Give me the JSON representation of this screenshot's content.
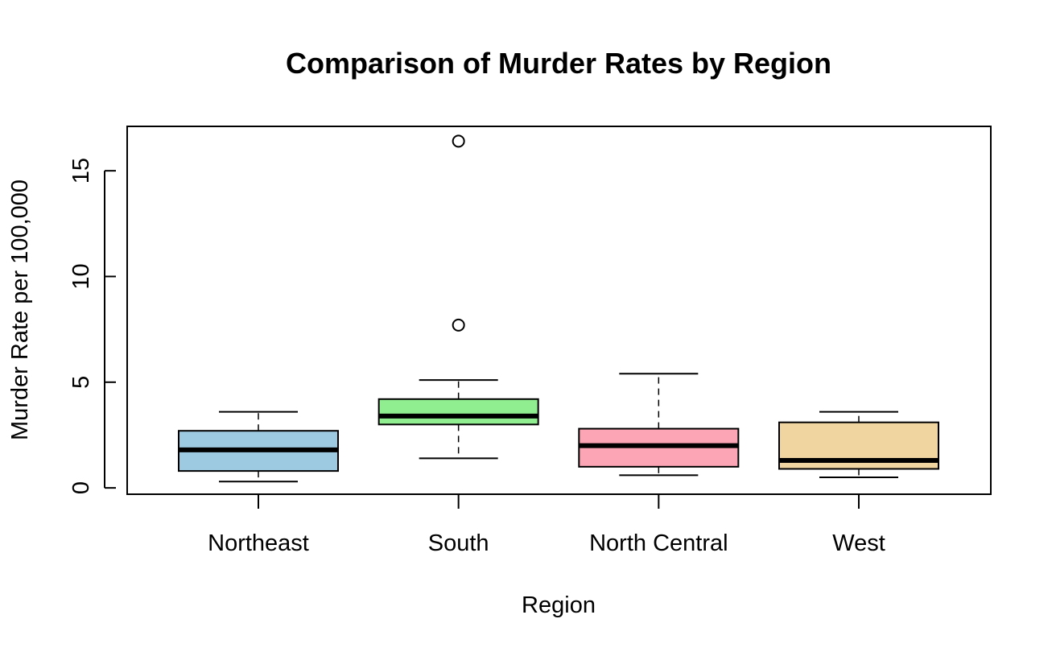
{
  "chart_data": {
    "type": "boxplot",
    "title": "Comparison of Murder Rates by Region",
    "xlabel": "Region",
    "ylabel": "Murder Rate per 100,000",
    "ylim": [
      -0.3,
      17.1
    ],
    "yticks": [
      0,
      5,
      10,
      15
    ],
    "categories": [
      "Northeast",
      "South",
      "North Central",
      "West"
    ],
    "boxes": [
      {
        "category": "Northeast",
        "min": 0.3,
        "q1": 0.8,
        "median": 1.8,
        "q3": 2.7,
        "max": 3.6,
        "outliers": [],
        "color": "#9ECAE1"
      },
      {
        "category": "South",
        "min": 1.4,
        "q1": 3.0,
        "median": 3.4,
        "q3": 4.2,
        "max": 5.1,
        "outliers": [
          7.7,
          16.4
        ],
        "color": "#90EE90"
      },
      {
        "category": "North Central",
        "min": 0.6,
        "q1": 1.0,
        "median": 2.0,
        "q3": 2.8,
        "max": 5.4,
        "outliers": [],
        "color": "#FCA5B5"
      },
      {
        "category": "West",
        "min": 0.5,
        "q1": 0.9,
        "median": 1.3,
        "q3": 3.1,
        "max": 3.6,
        "outliers": [],
        "color": "#F0D5A0"
      }
    ],
    "grid": false,
    "legend": "none"
  }
}
